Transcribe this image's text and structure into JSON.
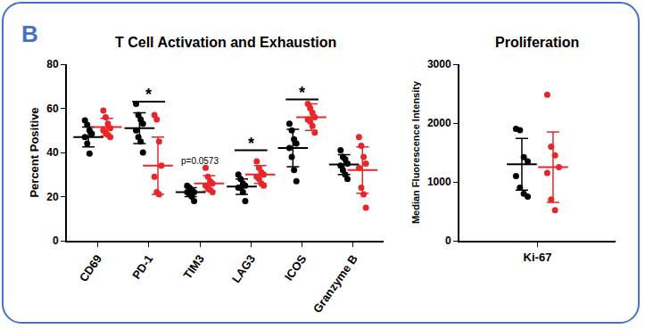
{
  "panel_label": "B",
  "chart_data": [
    {
      "type": "scatter",
      "title": "T Cell Activation and Exhaustion",
      "y_label": "Percent Positive",
      "categories": [
        "CD69",
        "PD-1",
        "TIM3",
        "LAG3",
        "ICOS",
        "Granzyme B"
      ],
      "ylim": [
        0,
        80
      ],
      "yticks": [
        0,
        20,
        40,
        60,
        80
      ],
      "grid": false,
      "series": [
        {
          "color": "#000000",
          "values": [
            [
              54.5,
              52.5,
              50,
              48.5,
              47,
              44,
              39.5
            ],
            [
              62,
              57,
              55,
              53,
              50,
              47,
              45,
              40
            ],
            [
              25,
              24,
              23,
              22,
              22,
              21,
              20,
              18
            ],
            [
              30,
              28,
              26,
              25,
              24,
              24,
              22,
              18
            ],
            [
              53,
              50,
              46,
              44,
              42,
              38,
              32,
              27
            ],
            [
              41,
              38,
              37,
              35,
              34,
              32,
              30,
              28
            ]
          ],
          "mean": [
            47,
            51,
            22,
            24.5,
            42,
            34.5
          ],
          "sd": [
            4.5,
            7,
            2,
            3.5,
            8.5,
            4.5
          ]
        },
        {
          "color": "#e8262a",
          "values": [
            [
              59,
              56,
              53,
              51,
              50,
              49,
              48,
              47
            ],
            [
              57,
              55,
              45,
              34,
              29,
              22,
              21
            ],
            [
              33,
              29,
              27,
              26,
              25,
              24,
              23,
              22
            ],
            [
              36,
              33,
              31,
              30,
              29,
              28,
              26,
              25
            ],
            [
              62,
              60,
              58,
              56,
              55,
              54,
              52,
              49
            ],
            [
              47,
              43,
              38,
              35,
              33,
              24,
              21,
              15
            ]
          ],
          "mean": [
            51.5,
            34,
            26,
            30,
            56,
            32
          ],
          "sd": [
            4,
            13,
            3.5,
            4,
            6,
            10.5
          ]
        }
      ],
      "annotations": [
        {
          "type": "significance",
          "category": "PD-1",
          "y": 63,
          "text": "*"
        },
        {
          "type": "text",
          "category": "TIM3",
          "y": 33,
          "text": "p=0.0573"
        },
        {
          "type": "significance",
          "category": "LAG3",
          "y": 41,
          "text": "*"
        },
        {
          "type": "significance",
          "category": "ICOS",
          "y": 64,
          "text": "*"
        }
      ]
    },
    {
      "type": "scatter",
      "title": "Proliferation",
      "y_label": "Median Fluorescence Intensity",
      "categories": [
        "Ki-67"
      ],
      "ylim": [
        0,
        3000
      ],
      "yticks": [
        0,
        1000,
        2000,
        3000
      ],
      "grid": false,
      "series": [
        {
          "color": "#000000",
          "values": [
            [
              1900,
              1880,
              1420,
              1350,
              1100,
              900,
              800,
              750
            ]
          ],
          "mean": [
            1300
          ],
          "sd": [
            440
          ]
        },
        {
          "color": "#e8262a",
          "values": [
            [
              2480,
              1600,
              1450,
              1250,
              1150,
              700,
              520
            ]
          ],
          "mean": [
            1250
          ],
          "sd": [
            600
          ]
        }
      ],
      "annotations": []
    }
  ]
}
